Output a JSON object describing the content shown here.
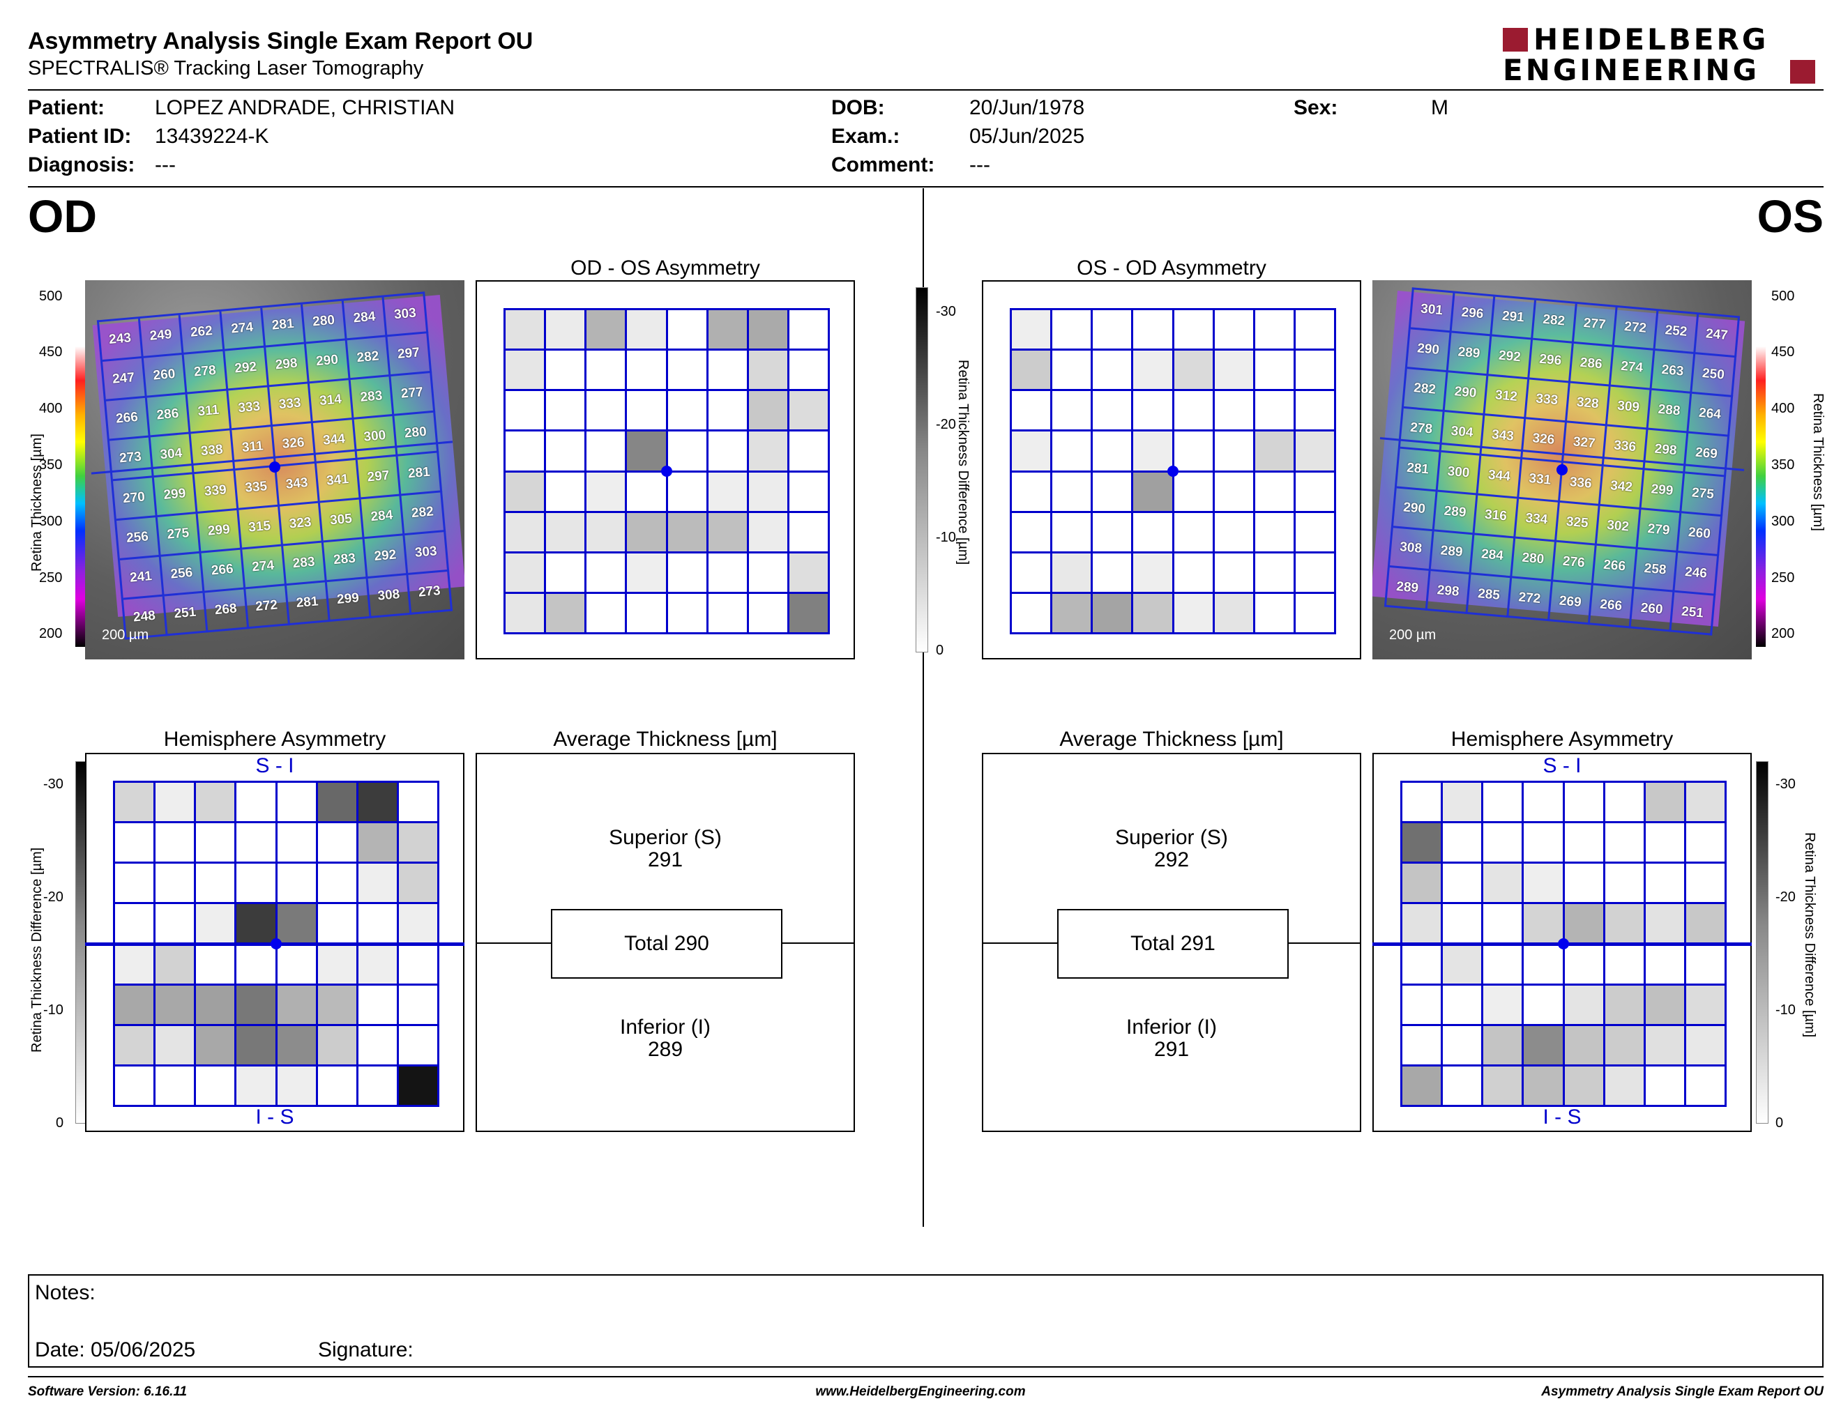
{
  "header": {
    "title": "Asymmetry Analysis Single Exam Report OU",
    "subtitle": "SPECTRALIS® Tracking Laser Tomography",
    "logo_line1": "HEIDELBERG",
    "logo_line2": "ENGINEERING"
  },
  "patient": {
    "patient_label": "Patient:",
    "patient_value": "LOPEZ ANDRADE, CHRISTIAN",
    "id_label": "Patient ID:",
    "id_value": "13439224-K",
    "diagnosis_label": "Diagnosis:",
    "diagnosis_value": "---",
    "dob_label": "DOB:",
    "dob_value": "20/Jun/1978",
    "exam_label": "Exam.:",
    "exam_value": "05/Jun/2025",
    "comment_label": "Comment:",
    "comment_value": "---",
    "sex_label": "Sex:",
    "sex_value": "M"
  },
  "od": {
    "label": "OD",
    "asym_title": "OD - OS Asymmetry",
    "hemi_title": "Hemisphere Asymmetry",
    "avg_title": "Average Thickness [µm]",
    "scale_label": "200 µm",
    "thickness_grid": [
      [
        243,
        249,
        262,
        274,
        281,
        280,
        284,
        303
      ],
      [
        247,
        260,
        278,
        292,
        298,
        290,
        282,
        297
      ],
      [
        266,
        286,
        311,
        333,
        333,
        314,
        283,
        277
      ],
      [
        273,
        304,
        338,
        311,
        326,
        344,
        300,
        280
      ],
      [
        270,
        299,
        339,
        335,
        343,
        341,
        297,
        281
      ],
      [
        256,
        275,
        299,
        315,
        323,
        305,
        284,
        282
      ],
      [
        241,
        256,
        266,
        274,
        283,
        283,
        292,
        303
      ],
      [
        248,
        251,
        268,
        272,
        281,
        299,
        308,
        273
      ]
    ],
    "asym_shades": [
      [
        "#e2e2e2",
        "#ebebeb",
        "#b4b4b4",
        "#ebebeb",
        "#fff",
        "#b0b0b0",
        "#aaaaaa",
        "#fff"
      ],
      [
        "#e6e6e6",
        "#fff",
        "#fff",
        "#fff",
        "#fff",
        "#fff",
        "#d8d8d8",
        "#fff"
      ],
      [
        "#fff",
        "#fff",
        "#fff",
        "#fff",
        "#fff",
        "#fff",
        "#c8c8c8",
        "#dcdcdc"
      ],
      [
        "#fff",
        "#fff",
        "#fff",
        "#868686",
        "#fff",
        "#fff",
        "#e0e0e0",
        "#fff"
      ],
      [
        "#d6d6d6",
        "#fff",
        "#eeeeee",
        "#fff",
        "#fff",
        "#eeeeee",
        "#ececec",
        "#fff"
      ],
      [
        "#e6e6e6",
        "#e6e6e6",
        "#e6e6e6",
        "#bbbbbb",
        "#bbbbbb",
        "#c0c0c0",
        "#ececec",
        "#fff"
      ],
      [
        "#e6e6e6",
        "#fff",
        "#fff",
        "#eeeeee",
        "#fff",
        "#fff",
        "#fff",
        "#dedede"
      ],
      [
        "#e6e6e6",
        "#c4c4c4",
        "#fff",
        "#fff",
        "#fff",
        "#fff",
        "#fff",
        "#808080"
      ]
    ],
    "hemi_shades": [
      [
        "#d6d6d6",
        "#eeeeee",
        "#d6d6d6",
        "#fff",
        "#fff",
        "#686868",
        "#3c3c3c",
        "#fff"
      ],
      [
        "#fff",
        "#fff",
        "#fff",
        "#fff",
        "#fff",
        "#fff",
        "#b4b4b4",
        "#d2d2d2"
      ],
      [
        "#fff",
        "#fff",
        "#fff",
        "#fff",
        "#fff",
        "#fff",
        "#eeeeee",
        "#d2d2d2"
      ],
      [
        "#fff",
        "#fff",
        "#eeeeee",
        "#3c3c3c",
        "#7a7a7a",
        "#fff",
        "#fff",
        "#eeeeee"
      ],
      [
        "#eeeeee",
        "#d2d2d2",
        "#fff",
        "#fff",
        "#fff",
        "#eeeeee",
        "#eeeeee",
        "#fff"
      ],
      [
        "#a8a8a8",
        "#a8a8a8",
        "#a0a0a0",
        "#787878",
        "#b0b0b0",
        "#bababa",
        "#fff",
        "#fff"
      ],
      [
        "#d4d4d4",
        "#e4e4e4",
        "#a8a8a8",
        "#787878",
        "#8c8c8c",
        "#cccccc",
        "#fff",
        "#fff"
      ],
      [
        "#fff",
        "#fff",
        "#fff",
        "#eeeeee",
        "#eeeeee",
        "#fff",
        "#fff",
        "#141414"
      ]
    ],
    "hemi_top": "S - I",
    "hemi_bottom": "I - S",
    "superior_label": "Superior (S)",
    "superior_value": "291",
    "total": "Total 290",
    "inferior_label": "Inferior (I)",
    "inferior_value": "289"
  },
  "os": {
    "label": "OS",
    "asym_title": "OS - OD Asymmetry",
    "hemi_title": "Hemisphere Asymmetry",
    "avg_title": "Average Thickness [µm]",
    "scale_label": "200 µm",
    "thickness_grid": [
      [
        301,
        296,
        291,
        282,
        277,
        272,
        252,
        247
      ],
      [
        290,
        289,
        292,
        296,
        286,
        274,
        263,
        250
      ],
      [
        282,
        290,
        312,
        333,
        328,
        309,
        288,
        264
      ],
      [
        278,
        304,
        343,
        326,
        327,
        336,
        298,
        269
      ],
      [
        281,
        300,
        344,
        331,
        336,
        342,
        299,
        275
      ],
      [
        290,
        289,
        316,
        334,
        325,
        302,
        279,
        260
      ],
      [
        308,
        289,
        284,
        280,
        276,
        266,
        258,
        246
      ],
      [
        289,
        298,
        285,
        272,
        269,
        266,
        260,
        251
      ]
    ],
    "asym_shades": [
      [
        "#eeeeee",
        "#fff",
        "#fff",
        "#fff",
        "#fff",
        "#fff",
        "#fff",
        "#fff"
      ],
      [
        "#cccccc",
        "#fff",
        "#fff",
        "#eeeeee",
        "#dadada",
        "#eeeeee",
        "#fff",
        "#fff"
      ],
      [
        "#fff",
        "#fff",
        "#fff",
        "#fff",
        "#fff",
        "#fff",
        "#fff",
        "#fff"
      ],
      [
        "#eeeeee",
        "#fff",
        "#fff",
        "#eeeeee",
        "#fff",
        "#fff",
        "#d4d4d4",
        "#e4e4e4"
      ],
      [
        "#fff",
        "#fff",
        "#fff",
        "#a0a0a0",
        "#fff",
        "#fff",
        "#fff",
        "#fff"
      ],
      [
        "#fff",
        "#fff",
        "#fff",
        "#fff",
        "#fff",
        "#fff",
        "#fff",
        "#fff"
      ],
      [
        "#fff",
        "#e8e8e8",
        "#fff",
        "#eeeeee",
        "#fff",
        "#fff",
        "#fff",
        "#fff"
      ],
      [
        "#fff",
        "#b8b8b8",
        "#a4a4a4",
        "#c8c8c8",
        "#eeeeee",
        "#e4e4e4",
        "#fff",
        "#fff"
      ]
    ],
    "hemi_shades": [
      [
        "#fff",
        "#e8e8e8",
        "#fff",
        "#fff",
        "#fff",
        "#fff",
        "#c8c8c8",
        "#e0e0e0"
      ],
      [
        "#707070",
        "#fff",
        "#fff",
        "#fff",
        "#fff",
        "#fff",
        "#fff",
        "#fff"
      ],
      [
        "#c4c4c4",
        "#fff",
        "#e4e4e4",
        "#eeeeee",
        "#fff",
        "#fff",
        "#fff",
        "#fff"
      ],
      [
        "#e2e2e2",
        "#fff",
        "#fff",
        "#d4d4d4",
        "#b4b4b4",
        "#d2d2d2",
        "#e2e2e2",
        "#c8c8c8"
      ],
      [
        "#fff",
        "#e4e4e4",
        "#fff",
        "#fff",
        "#fff",
        "#fff",
        "#fff",
        "#fff"
      ],
      [
        "#fff",
        "#fff",
        "#eeeeee",
        "#fff",
        "#e4e4e4",
        "#cccccc",
        "#c0c0c0",
        "#dcdcdc"
      ],
      [
        "#fff",
        "#fff",
        "#c4c4c4",
        "#8c8c8c",
        "#c4c4c4",
        "#cccccc",
        "#e0e0e0",
        "#e8e8e8"
      ],
      [
        "#a8a8a8",
        "#fff",
        "#d0d0d0",
        "#bcbcbc",
        "#cccccc",
        "#e4e4e4",
        "#fff",
        "#fff"
      ]
    ],
    "hemi_top": "S - I",
    "hemi_bottom": "I - S",
    "superior_label": "Superior (S)",
    "superior_value": "292",
    "total": "Total 291",
    "inferior_label": "Inferior (I)",
    "inferior_value": "291"
  },
  "axes": {
    "thickness_label": "Retina Thickness [µm]",
    "thickness_ticks": [
      "500",
      "450",
      "400",
      "350",
      "300",
      "250",
      "200"
    ],
    "diff_label": "Retina Thickness Difference [µm]",
    "diff_ticks": [
      "-30",
      "-20",
      "-10",
      "0"
    ]
  },
  "notes": {
    "notes_label": "Notes:",
    "date_label": "Date: 05/06/2025",
    "signature_label": "Signature:"
  },
  "footer": {
    "software": "Software Version: 6.16.11",
    "website": "www.HeidelbergEngineering.com",
    "report": "Asymmetry Analysis Single Exam Report OU"
  },
  "colors": {
    "grid_blue": "#0000cc",
    "logo_red": "#9b1b30"
  }
}
